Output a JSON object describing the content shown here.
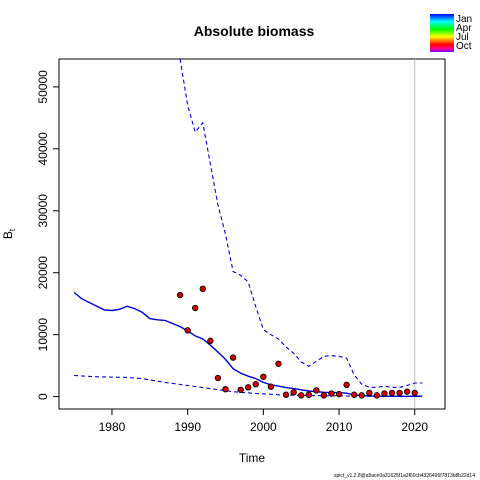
{
  "chart_data": {
    "type": "line",
    "title": "Absolute biomass",
    "xlabel": "Time",
    "ylabel": "B",
    "ylabel_subscript": "t",
    "xlim": [
      1973,
      2024
    ],
    "ylim": [
      -2000,
      54500
    ],
    "xticks": [
      1980,
      1990,
      2000,
      2010,
      2020
    ],
    "xtick_labels": [
      "1980",
      "1990",
      "2000",
      "2010",
      "2020"
    ],
    "yticks": [
      0,
      10000,
      20000,
      30000,
      40000,
      50000
    ],
    "ytick_labels": [
      "0",
      "10000",
      "20000",
      "30000",
      "40000",
      "50000"
    ],
    "vertical_line_x": 2020,
    "series": [
      {
        "role": "estimate",
        "style": "solid",
        "color": "#0000cc",
        "x": [
          1975,
          1976,
          1977,
          1978,
          1979,
          1980,
          1981,
          1982,
          1983,
          1984,
          1985,
          1986,
          1987,
          1988,
          1989,
          1990,
          1991,
          1992,
          1993,
          1994,
          1995,
          1996,
          1997,
          1998,
          1999,
          2000,
          2001,
          2002,
          2003,
          2004,
          2005,
          2006,
          2007,
          2008,
          2009,
          2010,
          2011,
          2012,
          2013,
          2014,
          2015,
          2016,
          2017,
          2018,
          2019,
          2020,
          2021
        ],
        "y": [
          16800,
          15800,
          15200,
          14600,
          14000,
          13900,
          14100,
          14600,
          14200,
          13600,
          12600,
          12400,
          12300,
          11800,
          11300,
          10600,
          9800,
          9300,
          8300,
          7200,
          6000,
          4500,
          3800,
          3300,
          2900,
          2300,
          1900,
          1700,
          1450,
          1300,
          1100,
          900,
          800,
          700,
          650,
          650,
          550,
          300,
          150,
          100,
          80,
          60,
          55,
          50,
          55,
          65,
          60
        ]
      },
      {
        "role": "upper-ci",
        "style": "dashed",
        "color": "#0000cc",
        "x": [
          1989,
          1990,
          1991,
          1992,
          1993,
          1994,
          1995,
          1996,
          1997,
          1998,
          1999,
          2000,
          2001,
          2002,
          2003,
          2004,
          2005,
          2006,
          2007,
          2008,
          2009,
          2010,
          2011,
          2012,
          2013,
          2014,
          2015,
          2016,
          2017,
          2018,
          2019,
          2020,
          2021
        ],
        "y": [
          54500,
          47000,
          42700,
          44200,
          37500,
          31000,
          26200,
          20200,
          19600,
          18500,
          14500,
          10800,
          10000,
          9300,
          8000,
          7000,
          5600,
          4900,
          5700,
          6500,
          6600,
          6500,
          6200,
          3500,
          2000,
          1500,
          1500,
          1700,
          1500,
          1500,
          1800,
          2200,
          2200
        ]
      },
      {
        "role": "lower-ci",
        "style": "dashed",
        "color": "#0000cc",
        "x": [
          1975,
          1978,
          1982,
          1984,
          1987,
          1990,
          1993,
          1996,
          1999,
          2002,
          2005,
          2008,
          2010,
          2012,
          2015,
          2018,
          2020,
          2021
        ],
        "y": [
          3400,
          3200,
          3100,
          2900,
          2300,
          1800,
          1300,
          800,
          500,
          300,
          200,
          150,
          120,
          80,
          50,
          40,
          40,
          40
        ]
      }
    ],
    "points": {
      "fill_color": "#cc0000",
      "stroke_color": "#000000",
      "x": [
        1989,
        1990,
        1991,
        1992,
        1993,
        1994,
        1995,
        1996,
        1997,
        1998,
        1999,
        2000,
        2001,
        2002,
        2003,
        2004,
        2005,
        2006,
        2007,
        2008,
        2009,
        2010,
        2011,
        2012,
        2013,
        2014,
        2015,
        2016,
        2017,
        2018,
        2019,
        2020
      ],
      "y": [
        16400,
        10700,
        14300,
        17400,
        9000,
        3000,
        1200,
        6300,
        1100,
        1500,
        2000,
        3200,
        1600,
        5300,
        300,
        700,
        200,
        300,
        1000,
        200,
        500,
        400,
        1900,
        300,
        200,
        600,
        200,
        500,
        600,
        600,
        800,
        600
      ]
    },
    "legend": {
      "placement": "top-right",
      "entries": [
        "Jan",
        "Apr",
        "Jul",
        "Oct"
      ],
      "gradient_colors": [
        "#0000ff",
        "#0080ff",
        "#00ffff",
        "#00ff80",
        "#00ff00",
        "#80ff00",
        "#ffff00",
        "#ff8000",
        "#ff0000",
        "#ff0080",
        "#8000ff"
      ]
    },
    "footnote": "spict_v1.2.8@a5ace0a31625f1a2f60cb4326496f7813b8b22d14"
  }
}
